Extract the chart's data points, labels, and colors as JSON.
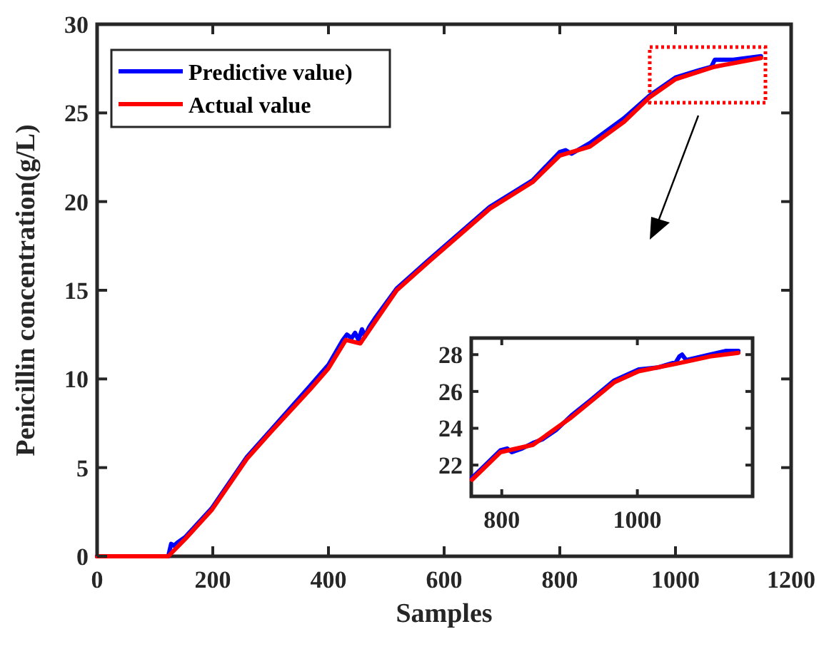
{
  "chart_data": [
    {
      "type": "line",
      "xlabel": "Samples",
      "ylabel": "Penicillin concentration(g/L)",
      "xlim": [
        0,
        1200
      ],
      "ylim": [
        0,
        30
      ],
      "xticks": [
        0,
        200,
        400,
        600,
        800,
        1000,
        1200
      ],
      "yticks": [
        0,
        5,
        10,
        15,
        20,
        25,
        30
      ],
      "legend": "top left",
      "series": [
        {
          "name": "Predictive value)",
          "color": "#0000ff",
          "x": [
            0,
            123,
            128,
            133,
            140,
            153,
            198,
            259,
            300,
            368,
            400,
            425,
            432,
            440,
            446,
            452,
            458,
            463,
            470,
            480,
            518,
            573,
            679,
            753,
            800,
            810,
            820,
            852,
            911,
            956,
            1000,
            1040,
            1062,
            1068,
            1100,
            1148
          ],
          "values": [
            0,
            0,
            0.7,
            0.6,
            0.8,
            1.1,
            2.7,
            5.6,
            7.1,
            9.6,
            10.8,
            12.2,
            12.5,
            12.3,
            12.6,
            12.2,
            12.8,
            12.4,
            12.9,
            13.4,
            15.1,
            16.7,
            19.7,
            21.2,
            22.8,
            22.9,
            22.7,
            23.3,
            24.7,
            26.0,
            27.0,
            27.4,
            27.6,
            28.0,
            28.0,
            28.2
          ]
        },
        {
          "name": "Actual value",
          "color": "#ff0000",
          "x": [
            0,
            123,
            153,
            198,
            259,
            300,
            368,
            400,
            430,
            455,
            480,
            518,
            573,
            679,
            753,
            800,
            852,
            911,
            956,
            1000,
            1067,
            1148
          ],
          "values": [
            0,
            0,
            1,
            2.6,
            5.5,
            7,
            9.4,
            10.6,
            12.2,
            12.0,
            13.2,
            15,
            16.6,
            19.6,
            21.1,
            22.6,
            23.1,
            24.5,
            25.9,
            26.9,
            27.6,
            28.1
          ]
        }
      ]
    },
    {
      "type": "line",
      "xlim": [
        755,
        1170
      ],
      "ylim": [
        20.3,
        28.9
      ],
      "xticks": [
        800,
        1000
      ],
      "yticks": [
        22,
        24,
        26,
        28
      ],
      "series": [
        {
          "color": "#0000ff",
          "x": [
            756,
            770,
            798,
            808,
            815,
            830,
            846,
            860,
            880,
            903,
            930,
            966,
            1002,
            1030,
            1057,
            1062,
            1066,
            1072,
            1107,
            1130,
            1149
          ],
          "values": [
            21.3,
            21.8,
            22.8,
            22.9,
            22.7,
            22.9,
            23.2,
            23.4,
            23.9,
            24.7,
            25.5,
            26.6,
            27.2,
            27.3,
            27.6,
            27.9,
            28.0,
            27.7,
            28.0,
            28.2,
            28.2
          ]
        },
        {
          "color": "#ff0000",
          "x": [
            756,
            798,
            846,
            903,
            966,
            1002,
            1057,
            1107,
            1149
          ],
          "values": [
            21.2,
            22.7,
            23.1,
            24.6,
            26.5,
            27.1,
            27.5,
            27.9,
            28.1
          ]
        }
      ]
    }
  ]
}
